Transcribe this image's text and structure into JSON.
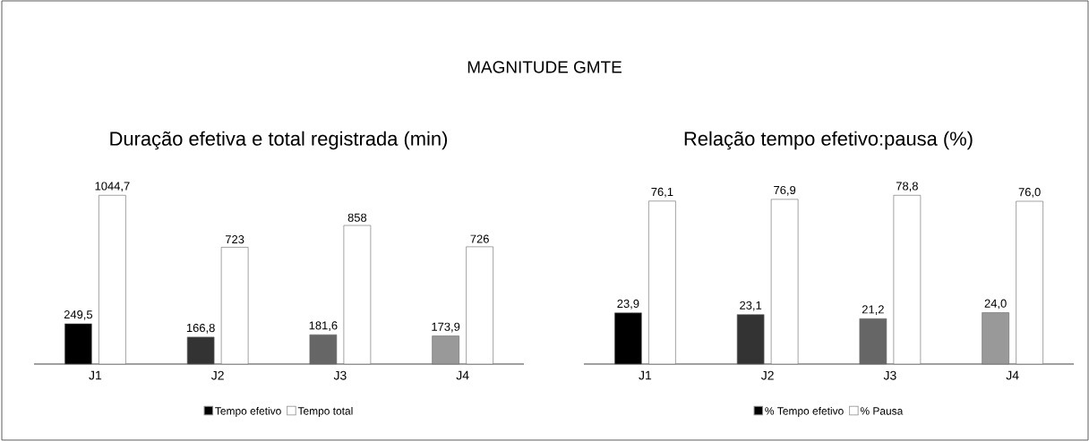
{
  "chart_data": [
    {
      "type": "bar",
      "title": "Duração efetiva e total registrada (min)",
      "annotations": [
        "MAGNITUDE GMTE"
      ],
      "categories": [
        "J1",
        "J2",
        "J3",
        "J4"
      ],
      "legend": "bottom",
      "series": [
        {
          "name": "Tempo efetivo",
          "colors": [
            "#000000",
            "#333333",
            "#666666",
            "#999999"
          ],
          "values": [
            249.5,
            166.8,
            181.6,
            173.9
          ],
          "value_labels": [
            "249,5",
            "166,8",
            "181,6",
            "173,9"
          ]
        },
        {
          "name": "Tempo total",
          "color": "#ffffff",
          "values": [
            1044.7,
            723,
            858,
            726
          ],
          "value_labels": [
            "1044,7",
            "723",
            "858",
            "726"
          ]
        }
      ]
    },
    {
      "type": "bar",
      "title": "Relação tempo efetivo:pausa (%)",
      "categories": [
        "J1",
        "J2",
        "J3",
        "J4"
      ],
      "legend": "bottom",
      "series": [
        {
          "name": "% Tempo efetivo",
          "colors": [
            "#000000",
            "#333333",
            "#666666",
            "#999999"
          ],
          "values": [
            23.9,
            23.1,
            21.2,
            24.0
          ],
          "value_labels": [
            "23,9",
            "23,1",
            "21,2",
            "24,0"
          ]
        },
        {
          "name": "% Pausa",
          "color": "#ffffff",
          "values": [
            76.1,
            76.9,
            78.8,
            76.0
          ],
          "value_labels": [
            "76,1",
            "76,9",
            "78,8",
            "76,0"
          ]
        }
      ]
    }
  ]
}
